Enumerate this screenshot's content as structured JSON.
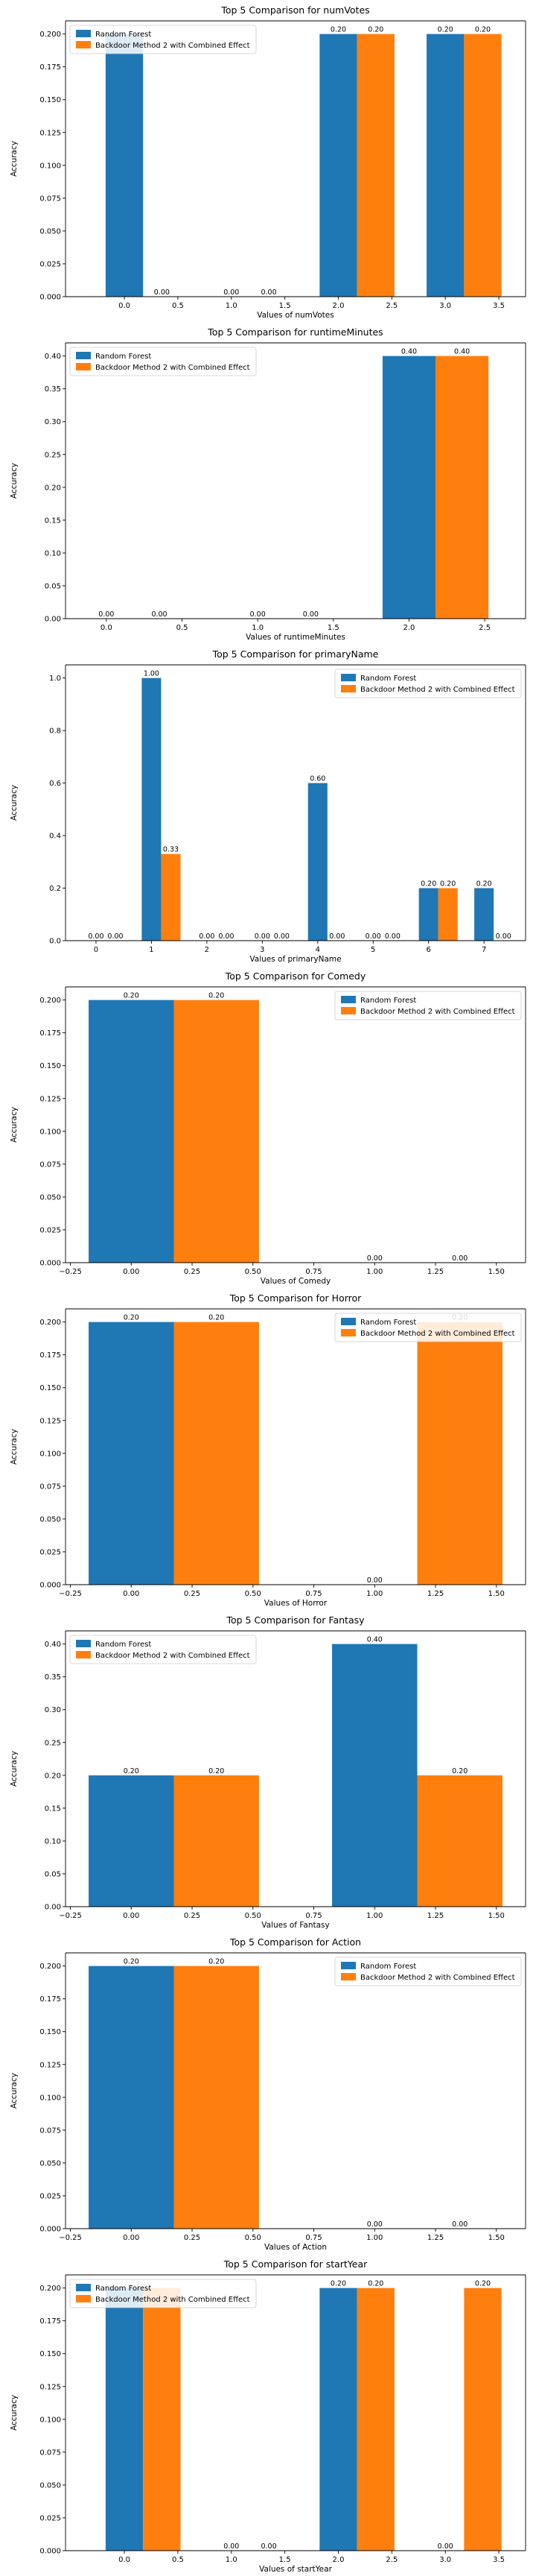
{
  "figure": {
    "background": "#ffffff"
  },
  "colors": {
    "series_1": "#1f77b4",
    "series_2": "#ff7f0e",
    "legend_border": "#cccccc"
  },
  "chart_data": [
    {
      "type": "bar",
      "title": "Top 5 Comparison for numVotes",
      "xlabel": "Values of numVotes",
      "ylabel": "Accuracy",
      "xlim": [
        -0.55,
        3.75
      ],
      "ylim": [
        0,
        0.21
      ],
      "xticks": [
        0.0,
        0.5,
        1.0,
        1.5,
        2.0,
        2.5,
        3.0,
        3.5
      ],
      "xtick_labels": [
        "0.0",
        "0.5",
        "1.0",
        "1.5",
        "2.0",
        "2.5",
        "3.0",
        "3.5"
      ],
      "yticks": [
        0.0,
        0.025,
        0.05,
        0.075,
        0.1,
        0.125,
        0.15,
        0.175,
        0.2
      ],
      "ytick_labels": [
        "0.000",
        "0.025",
        "0.050",
        "0.075",
        "0.100",
        "0.125",
        "0.150",
        "0.175",
        "0.200"
      ],
      "bar_width": 0.35,
      "x": [
        0,
        1,
        2,
        3
      ],
      "series": [
        {
          "name": "Random Forest",
          "values": [
            0.2,
            0.0,
            0.2,
            0.2
          ],
          "labels": [
            "",
            "0.00",
            "0.20",
            "0.20"
          ]
        },
        {
          "name": "Backdoor Method 2 with Combined Effect",
          "values": [
            0.0,
            0.0,
            0.2,
            0.2
          ],
          "labels": [
            "0.00",
            "0.00",
            "0.20",
            "0.20"
          ]
        }
      ],
      "grid": false,
      "legend": "upper left"
    },
    {
      "type": "bar",
      "title": "Top 5 Comparison for runtimeMinutes",
      "xlabel": "Values of runtimeMinutes",
      "ylabel": "Accuracy",
      "xlim": [
        -0.27,
        2.77
      ],
      "ylim": [
        0,
        0.42
      ],
      "xticks": [
        0.0,
        0.5,
        1.0,
        1.5,
        2.0,
        2.5
      ],
      "xtick_labels": [
        "0.0",
        "0.5",
        "1.0",
        "1.5",
        "2.0",
        "2.5"
      ],
      "yticks": [
        0.0,
        0.05,
        0.1,
        0.15,
        0.2,
        0.25,
        0.3,
        0.35,
        0.4
      ],
      "ytick_labels": [
        "0.00",
        "0.05",
        "0.10",
        "0.15",
        "0.20",
        "0.25",
        "0.30",
        "0.35",
        "0.40"
      ],
      "bar_width": 0.35,
      "x": [
        0,
        1,
        2
      ],
      "series": [
        {
          "name": "Random Forest",
          "values": [
            0.0,
            0.0,
            0.4
          ],
          "labels": [
            "0.00",
            "0.00",
            "0.40"
          ]
        },
        {
          "name": "Backdoor Method 2 with Combined Effect",
          "values": [
            0.0,
            0.0,
            0.4
          ],
          "labels": [
            "0.00",
            "0.00",
            "0.40"
          ]
        }
      ],
      "grid": false,
      "legend": "upper left"
    },
    {
      "type": "bar",
      "title": "Top 5 Comparison for primaryName",
      "xlabel": "Values of primaryName",
      "ylabel": "Accuracy",
      "xlim": [
        -0.55,
        7.75
      ],
      "ylim": [
        0,
        1.05
      ],
      "xticks": [
        0,
        1,
        2,
        3,
        4,
        5,
        6,
        7
      ],
      "xtick_labels": [
        "0",
        "1",
        "2",
        "3",
        "4",
        "5",
        "6",
        "7"
      ],
      "yticks": [
        0.0,
        0.2,
        0.4,
        0.6,
        0.8,
        1.0
      ],
      "ytick_labels": [
        "0.0",
        "0.2",
        "0.4",
        "0.6",
        "0.8",
        "1.0"
      ],
      "bar_width": 0.35,
      "x": [
        0,
        1,
        2,
        3,
        4,
        5,
        6,
        7
      ],
      "series": [
        {
          "name": "Random Forest",
          "values": [
            0.0,
            1.0,
            0.0,
            0.0,
            0.6,
            0.0,
            0.2,
            0.2
          ],
          "labels": [
            "0.00",
            "1.00",
            "0.00",
            "0.00",
            "0.60",
            "0.00",
            "0.20",
            "0.20"
          ]
        },
        {
          "name": "Backdoor Method 2 with Combined Effect",
          "values": [
            0.0,
            0.33,
            0.0,
            0.0,
            0.0,
            0.0,
            0.2,
            0.0
          ],
          "labels": [
            "0.00",
            "0.33",
            "0.00",
            "0.00",
            "0.00",
            "0.00",
            "0.20",
            "0.00"
          ]
        }
      ],
      "grid": false,
      "legend": "upper right"
    },
    {
      "type": "bar",
      "title": "Top 5 Comparison for Comedy",
      "xlabel": "Values of Comedy",
      "ylabel": "Accuracy",
      "xlim": [
        -0.27,
        1.62
      ],
      "ylim": [
        0,
        0.21
      ],
      "xticks": [
        -0.25,
        0.0,
        0.25,
        0.5,
        0.75,
        1.0,
        1.25,
        1.5
      ],
      "xtick_labels": [
        "−0.25",
        "0.00",
        "0.25",
        "0.50",
        "0.75",
        "1.00",
        "1.25",
        "1.50"
      ],
      "yticks": [
        0.0,
        0.025,
        0.05,
        0.075,
        0.1,
        0.125,
        0.15,
        0.175,
        0.2
      ],
      "ytick_labels": [
        "0.000",
        "0.025",
        "0.050",
        "0.075",
        "0.100",
        "0.125",
        "0.150",
        "0.175",
        "0.200"
      ],
      "bar_width": 0.35,
      "x": [
        0,
        1
      ],
      "series": [
        {
          "name": "Random Forest",
          "values": [
            0.2,
            0.0
          ],
          "labels": [
            "0.20",
            "0.00"
          ]
        },
        {
          "name": "Backdoor Method 2 with Combined Effect",
          "values": [
            0.2,
            0.0
          ],
          "labels": [
            "0.20",
            "0.00"
          ]
        }
      ],
      "grid": false,
      "legend": "upper right"
    },
    {
      "type": "bar",
      "title": "Top 5 Comparison for Horror",
      "xlabel": "Values of Horror",
      "ylabel": "Accuracy",
      "xlim": [
        -0.27,
        1.62
      ],
      "ylim": [
        0,
        0.21
      ],
      "xticks": [
        -0.25,
        0.0,
        0.25,
        0.5,
        0.75,
        1.0,
        1.25,
        1.5
      ],
      "xtick_labels": [
        "−0.25",
        "0.00",
        "0.25",
        "0.50",
        "0.75",
        "1.00",
        "1.25",
        "1.50"
      ],
      "yticks": [
        0.0,
        0.025,
        0.05,
        0.075,
        0.1,
        0.125,
        0.15,
        0.175,
        0.2
      ],
      "ytick_labels": [
        "0.000",
        "0.025",
        "0.050",
        "0.075",
        "0.100",
        "0.125",
        "0.150",
        "0.175",
        "0.200"
      ],
      "bar_width": 0.35,
      "x": [
        0,
        1
      ],
      "series": [
        {
          "name": "Random Forest",
          "values": [
            0.2,
            0.0
          ],
          "labels": [
            "0.20",
            "0.00"
          ]
        },
        {
          "name": "Backdoor Method 2 with Combined Effect",
          "values": [
            0.2,
            0.2
          ],
          "labels": [
            "0.20",
            "0.20"
          ]
        }
      ],
      "grid": false,
      "legend": "upper right"
    },
    {
      "type": "bar",
      "title": "Top 5 Comparison for Fantasy",
      "xlabel": "Values of Fantasy",
      "ylabel": "Accuracy",
      "xlim": [
        -0.27,
        1.62
      ],
      "ylim": [
        0,
        0.42
      ],
      "xticks": [
        -0.25,
        0.0,
        0.25,
        0.5,
        0.75,
        1.0,
        1.25,
        1.5
      ],
      "xtick_labels": [
        "−0.25",
        "0.00",
        "0.25",
        "0.50",
        "0.75",
        "1.00",
        "1.25",
        "1.50"
      ],
      "yticks": [
        0.0,
        0.05,
        0.1,
        0.15,
        0.2,
        0.25,
        0.3,
        0.35,
        0.4
      ],
      "ytick_labels": [
        "0.00",
        "0.05",
        "0.10",
        "0.15",
        "0.20",
        "0.25",
        "0.30",
        "0.35",
        "0.40"
      ],
      "bar_width": 0.35,
      "x": [
        0,
        1
      ],
      "series": [
        {
          "name": "Random Forest",
          "values": [
            0.2,
            0.4
          ],
          "labels": [
            "0.20",
            "0.40"
          ]
        },
        {
          "name": "Backdoor Method 2 with Combined Effect",
          "values": [
            0.2,
            0.2
          ],
          "labels": [
            "0.20",
            "0.20"
          ]
        }
      ],
      "grid": false,
      "legend": "upper left"
    },
    {
      "type": "bar",
      "title": "Top 5 Comparison for Action",
      "xlabel": "Values of Action",
      "ylabel": "Accuracy",
      "xlim": [
        -0.27,
        1.62
      ],
      "ylim": [
        0,
        0.21
      ],
      "xticks": [
        -0.25,
        0.0,
        0.25,
        0.5,
        0.75,
        1.0,
        1.25,
        1.5
      ],
      "xtick_labels": [
        "−0.25",
        "0.00",
        "0.25",
        "0.50",
        "0.75",
        "1.00",
        "1.25",
        "1.50"
      ],
      "yticks": [
        0.0,
        0.025,
        0.05,
        0.075,
        0.1,
        0.125,
        0.15,
        0.175,
        0.2
      ],
      "ytick_labels": [
        "0.000",
        "0.025",
        "0.050",
        "0.075",
        "0.100",
        "0.125",
        "0.150",
        "0.175",
        "0.200"
      ],
      "bar_width": 0.35,
      "x": [
        0,
        1
      ],
      "series": [
        {
          "name": "Random Forest",
          "values": [
            0.2,
            0.0
          ],
          "labels": [
            "0.20",
            "0.00"
          ]
        },
        {
          "name": "Backdoor Method 2 with Combined Effect",
          "values": [
            0.2,
            0.0
          ],
          "labels": [
            "0.20",
            "0.00"
          ]
        }
      ],
      "grid": false,
      "legend": "upper right"
    },
    {
      "type": "bar",
      "title": "Top 5 Comparison for startYear",
      "xlabel": "Values of startYear",
      "ylabel": "Accuracy",
      "xlim": [
        -0.55,
        3.75
      ],
      "ylim": [
        0,
        0.21
      ],
      "xticks": [
        0.0,
        0.5,
        1.0,
        1.5,
        2.0,
        2.5,
        3.0,
        3.5
      ],
      "xtick_labels": [
        "0.0",
        "0.5",
        "1.0",
        "1.5",
        "2.0",
        "2.5",
        "3.0",
        "3.5"
      ],
      "yticks": [
        0.0,
        0.025,
        0.05,
        0.075,
        0.1,
        0.125,
        0.15,
        0.175,
        0.2
      ],
      "ytick_labels": [
        "0.000",
        "0.025",
        "0.050",
        "0.075",
        "0.100",
        "0.125",
        "0.150",
        "0.175",
        "0.200"
      ],
      "bar_width": 0.35,
      "x": [
        0,
        1,
        2,
        3
      ],
      "series": [
        {
          "name": "Random Forest",
          "values": [
            0.2,
            0.0,
            0.2,
            0.0
          ],
          "labels": [
            "",
            "0.00",
            "0.20",
            "0.00"
          ]
        },
        {
          "name": "Backdoor Method 2 with Combined Effect",
          "values": [
            0.2,
            0.0,
            0.2,
            0.2
          ],
          "labels": [
            "",
            "0.00",
            "0.20",
            "0.20"
          ]
        }
      ],
      "grid": false,
      "legend": "upper left"
    }
  ]
}
